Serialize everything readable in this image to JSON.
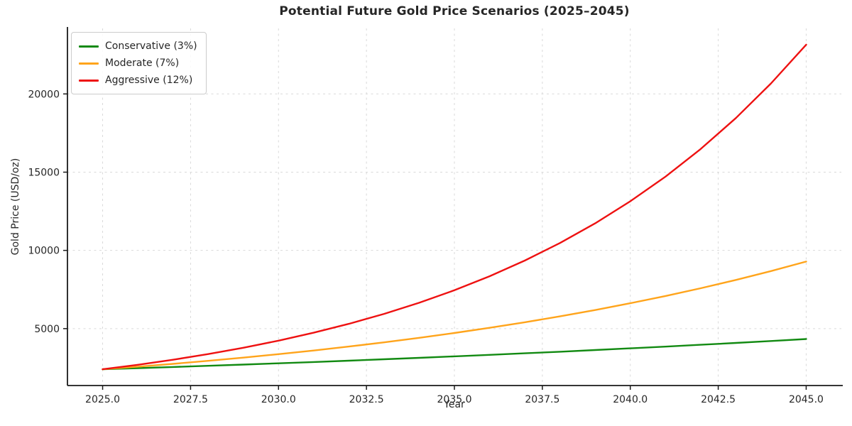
{
  "chart_data": {
    "type": "line",
    "title": "Potential Future Gold Price Scenarios (2025–2045)",
    "xlabel": "Year",
    "ylabel": "Gold Price (USD/oz)",
    "x": [
      2025,
      2026,
      2027,
      2028,
      2029,
      2030,
      2031,
      2032,
      2033,
      2034,
      2035,
      2036,
      2037,
      2038,
      2039,
      2040,
      2041,
      2042,
      2043,
      2044,
      2045
    ],
    "series": [
      {
        "name": "Conservative (3%)",
        "color": "#128a12",
        "values": [
          2400.0,
          2472.0,
          2546.2,
          2622.5,
          2701.2,
          2782.3,
          2865.7,
          2951.7,
          3040.2,
          3131.5,
          3225.4,
          3322.2,
          3421.8,
          3524.5,
          3630.2,
          3739.1,
          3851.3,
          3966.8,
          4085.8,
          4208.4,
          4334.7
        ]
      },
      {
        "name": "Moderate (7%)",
        "color": "#ffa41b",
        "values": [
          2400.0,
          2568.0,
          2747.8,
          2940.1,
          3145.9,
          3366.1,
          3601.8,
          3853.9,
          4123.6,
          4412.3,
          4721.2,
          5051.6,
          5405.3,
          5783.6,
          6188.5,
          6621.7,
          7085.2,
          7581.2,
          8111.8,
          8679.7,
          9287.2
        ]
      },
      {
        "name": "Aggressive (12%)",
        "color": "#ee1111",
        "values": [
          2400.0,
          2688.0,
          3010.6,
          3371.8,
          3776.4,
          4229.6,
          4737.2,
          5305.6,
          5942.3,
          6655.4,
          7454.0,
          8348.5,
          9350.3,
          10472.4,
          11729.1,
          13136.6,
          14712.9,
          16478.5,
          18455.9,
          20670.6,
          23151.1
        ]
      }
    ],
    "xlim": [
      2024,
      2046
    ],
    "ylim": [
      1362.4,
      24188.7
    ],
    "xticks": [
      2025.0,
      2027.5,
      2030.0,
      2032.5,
      2035.0,
      2037.5,
      2040.0,
      2042.5,
      2045.0
    ],
    "xtick_labels": [
      "2025.0",
      "2027.5",
      "2030.0",
      "2032.5",
      "2035.0",
      "2037.5",
      "2040.0",
      "2042.5",
      "2045.0"
    ],
    "yticks": [
      5000,
      10000,
      15000,
      20000
    ],
    "ytick_labels": [
      "5000",
      "10000",
      "15000",
      "20000"
    ],
    "grid": true,
    "legend_position": "upper left",
    "spine_color": "#1a1a1a",
    "grid_color": "#d9d9d9",
    "background": "#ffffff"
  }
}
